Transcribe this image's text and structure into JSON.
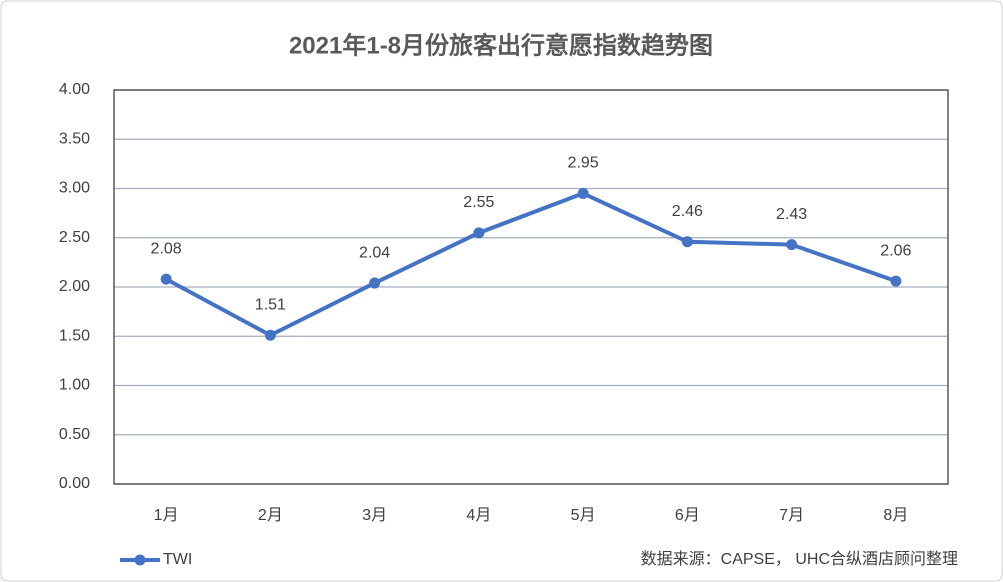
{
  "chart_data": {
    "type": "line",
    "title": "2021年1-8月份旅客出行意愿指数趋势图",
    "categories": [
      "1月",
      "2月",
      "3月",
      "4月",
      "5月",
      "6月",
      "7月",
      "8月"
    ],
    "series": [
      {
        "name": "TWI",
        "color": "#4472c4",
        "values": [
          2.08,
          1.51,
          2.04,
          2.55,
          2.95,
          2.46,
          2.43,
          2.06
        ]
      }
    ],
    "ylim": [
      0,
      4
    ],
    "yticks": [
      {
        "value": 0,
        "label": "0.00"
      },
      {
        "value": 0.5,
        "label": "0.50"
      },
      {
        "value": 1,
        "label": "1.00"
      },
      {
        "value": 1.5,
        "label": "1.50"
      },
      {
        "value": 2,
        "label": "2.00"
      },
      {
        "value": 2.5,
        "label": "2.50"
      },
      {
        "value": 3,
        "label": "3.00"
      },
      {
        "value": 3.5,
        "label": "3.50"
      },
      {
        "value": 4,
        "label": "4.00"
      }
    ],
    "grid": true,
    "legend": "bottom-left",
    "source": "数据来源：CAPSE， UHC合纵酒店顾问整理"
  }
}
